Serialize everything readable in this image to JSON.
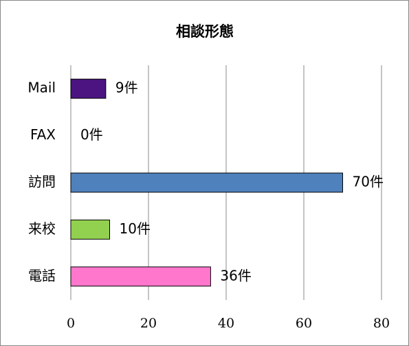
{
  "chart_data": {
    "type": "bar",
    "orientation": "horizontal",
    "title": "相談形態",
    "categories": [
      "Mail",
      "FAX",
      "訪問",
      "来校",
      "電話"
    ],
    "values": [
      9,
      0,
      70,
      10,
      36
    ],
    "value_labels": [
      "9件",
      "0件",
      "70件",
      "10件",
      "36件"
    ],
    "colors": [
      "#4b1480",
      "#4f81bd",
      "#4f81bd",
      "#92d050",
      "#ff77cc"
    ],
    "xlim": [
      0,
      80
    ],
    "xticks": [
      0,
      20,
      40,
      60,
      80
    ],
    "grid": true
  }
}
